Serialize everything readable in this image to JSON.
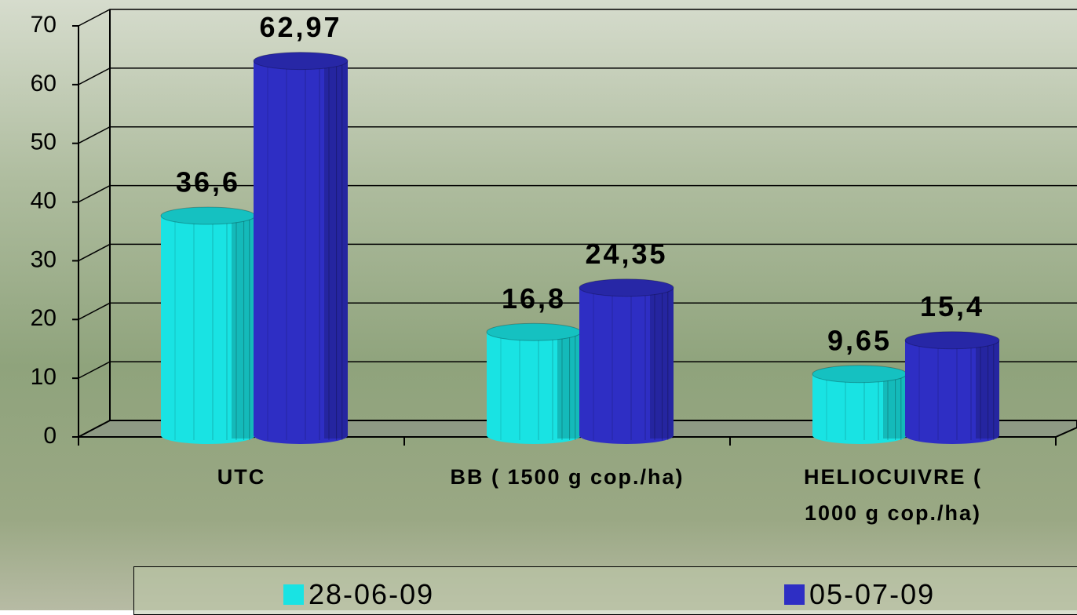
{
  "chart_data": {
    "type": "bar",
    "categories": [
      "UTC",
      "BB (  1500 g cop./ha)",
      "HELIOCUIVRE (  1000 g cop./ha)"
    ],
    "series": [
      {
        "name": "28-06-09",
        "color": "#19e3e3",
        "values": [
          36.6,
          16.8,
          9.65
        ],
        "value_labels": [
          "36,6",
          "16,8",
          "9,65"
        ]
      },
      {
        "name": "05-07-09",
        "color": "#2e2ec4",
        "values": [
          62.97,
          24.35,
          15.4
        ],
        "value_labels": [
          "62,97",
          "24,35",
          "15,4"
        ]
      }
    ],
    "ylim": [
      0,
      70
    ],
    "yticks": [
      0,
      10,
      20,
      30,
      40,
      50,
      60,
      70
    ],
    "grid": true,
    "legend": "bottom"
  }
}
